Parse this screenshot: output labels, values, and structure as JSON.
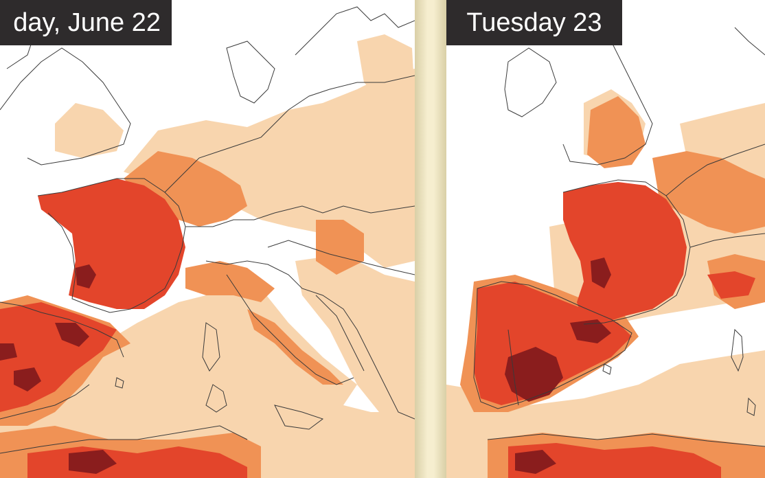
{
  "panels": [
    {
      "id": "left",
      "label": "day, June 22"
    },
    {
      "id": "right",
      "label": "Tuesday 23"
    }
  ],
  "colors": {
    "sea": "#ffffff",
    "level_1": "#f8d5ae",
    "level_2": "#f09255",
    "level_3": "#e3452b",
    "level_4": "#8a1d1d",
    "border": "#3a3a3a",
    "label_bg": "#2e2b2c",
    "label_text": "#ffffff",
    "divider": "#f2eacb"
  }
}
